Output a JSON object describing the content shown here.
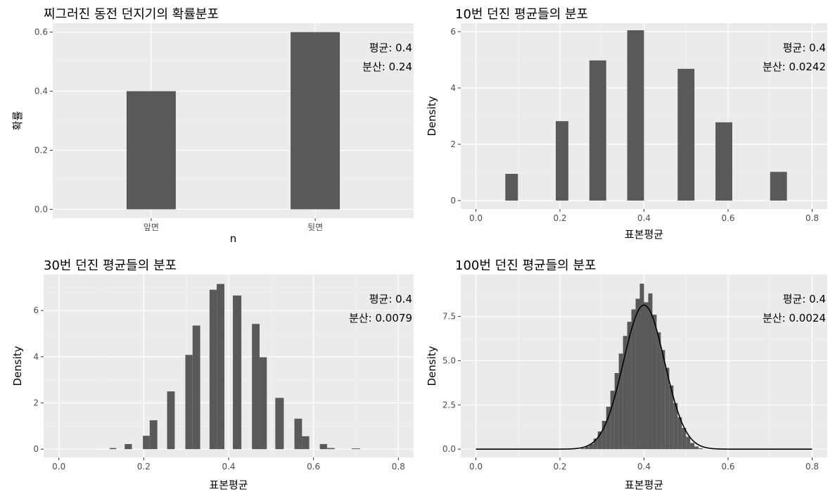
{
  "chart_data": [
    {
      "type": "bar",
      "title": "찌그러진 동전 던지기의 확률분포",
      "xlabel": "n",
      "ylabel": "확률",
      "categories": [
        "앞면",
        "뒷면"
      ],
      "values": [
        0.4,
        0.6
      ],
      "ylim": [
        0,
        0.6
      ],
      "yticks": [
        "0.0",
        "0.2",
        "0.4",
        "0.6"
      ],
      "annotations": [
        "평균: 0.4",
        "분산: 0.24"
      ],
      "grid": true
    },
    {
      "type": "bar",
      "title": "10번 던진 평균들의 분포",
      "xlabel": "표본평균",
      "ylabel": "Density",
      "xlim": [
        0,
        0.8
      ],
      "ylim": [
        0,
        6
      ],
      "xticks": [
        "0.0",
        "0.2",
        "0.4",
        "0.6",
        "0.8"
      ],
      "yticks": [
        "0",
        "2",
        "4",
        "6"
      ],
      "bins": [
        [
          0.07,
          0.1,
          0.95
        ],
        [
          0.19,
          0.22,
          2.82
        ],
        [
          0.27,
          0.31,
          4.98
        ],
        [
          0.36,
          0.4,
          6.05
        ],
        [
          0.48,
          0.52,
          4.68
        ],
        [
          0.57,
          0.61,
          2.78
        ],
        [
          0.7,
          0.74,
          1.02
        ]
      ],
      "annotations": [
        "평균: 0.4",
        "분산: 0.0242"
      ],
      "grid": true
    },
    {
      "type": "bar",
      "title": "30번 던진 평균들의 분포",
      "xlabel": "표본평균",
      "ylabel": "Density",
      "xlim": [
        0,
        0.8
      ],
      "ylim": [
        0,
        7.2
      ],
      "xticks": [
        "0.0",
        "0.2",
        "0.4",
        "0.6",
        "0.8"
      ],
      "yticks": [
        "0",
        "2",
        "4",
        "6"
      ],
      "bins": [
        [
          0.12,
          0.135,
          0.05
        ],
        [
          0.155,
          0.172,
          0.22
        ],
        [
          0.198,
          0.214,
          0.58
        ],
        [
          0.214,
          0.232,
          1.25
        ],
        [
          0.255,
          0.273,
          2.5
        ],
        [
          0.298,
          0.315,
          4.08
        ],
        [
          0.315,
          0.333,
          5.35
        ],
        [
          0.355,
          0.372,
          6.9
        ],
        [
          0.372,
          0.39,
          7.15
        ],
        [
          0.41,
          0.43,
          6.65
        ],
        [
          0.455,
          0.473,
          5.42
        ],
        [
          0.473,
          0.49,
          3.98
        ],
        [
          0.51,
          0.53,
          2.22
        ],
        [
          0.555,
          0.573,
          1.32
        ],
        [
          0.573,
          0.59,
          0.56
        ],
        [
          0.615,
          0.632,
          0.22
        ],
        [
          0.632,
          0.65,
          0.05
        ],
        [
          0.69,
          0.71,
          0.03
        ]
      ],
      "annotations": [
        "평균: 0.4",
        "분산: 0.0079"
      ],
      "grid": true
    },
    {
      "type": "bar",
      "title": "100번 던진 평균들의 분포",
      "xlabel": "표본평균",
      "ylabel": "Density",
      "xlim": [
        0,
        0.8
      ],
      "ylim": [
        0,
        9.4
      ],
      "xticks": [
        "0.0",
        "0.2",
        "0.4",
        "0.6",
        "0.8"
      ],
      "yticks": [
        "0.0",
        "2.5",
        "5.0",
        "7.5"
      ],
      "bins": [
        [
          0.25,
          0.26,
          0.05
        ],
        [
          0.26,
          0.27,
          0.15
        ],
        [
          0.27,
          0.28,
          0.3
        ],
        [
          0.28,
          0.29,
          0.6
        ],
        [
          0.29,
          0.3,
          1.0
        ],
        [
          0.3,
          0.31,
          1.6
        ],
        [
          0.31,
          0.32,
          2.4
        ],
        [
          0.32,
          0.33,
          3.3
        ],
        [
          0.33,
          0.34,
          4.3
        ],
        [
          0.34,
          0.35,
          5.4
        ],
        [
          0.35,
          0.36,
          6.4
        ],
        [
          0.36,
          0.37,
          7.2
        ],
        [
          0.37,
          0.38,
          7.9
        ],
        [
          0.38,
          0.39,
          8.5
        ],
        [
          0.39,
          0.4,
          9.35
        ],
        [
          0.4,
          0.41,
          8.3
        ],
        [
          0.41,
          0.42,
          8.8
        ],
        [
          0.42,
          0.43,
          7.6
        ],
        [
          0.43,
          0.44,
          6.6
        ],
        [
          0.44,
          0.45,
          5.6
        ],
        [
          0.45,
          0.46,
          4.6
        ],
        [
          0.46,
          0.47,
          3.6
        ],
        [
          0.47,
          0.48,
          2.6
        ],
        [
          0.48,
          0.49,
          1.8
        ],
        [
          0.49,
          0.5,
          1.2
        ],
        [
          0.5,
          0.51,
          0.7
        ],
        [
          0.51,
          0.52,
          0.35
        ],
        [
          0.52,
          0.53,
          0.15
        ],
        [
          0.53,
          0.54,
          0.05
        ]
      ],
      "density_curve": {
        "type": "normal",
        "mean": 0.4,
        "sd": 0.049
      },
      "annotations": [
        "평균: 0.4",
        "분산: 0.0024"
      ],
      "grid": true
    }
  ]
}
